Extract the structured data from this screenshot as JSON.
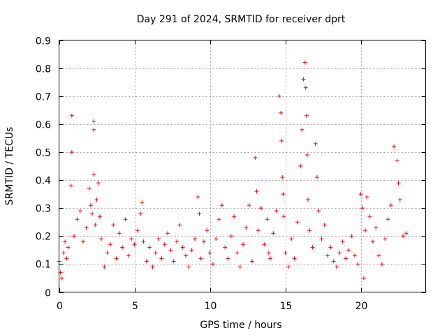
{
  "chart_data": {
    "type": "scatter",
    "title": "Day 291 of 2024, SRMTID for receiver dprt",
    "xlabel": "GPS time / hours",
    "ylabel": "SRMTID / TECUs",
    "xlim": [
      0,
      24.3
    ],
    "ylim": [
      0,
      0.9
    ],
    "x_ticks": [
      0,
      5,
      10,
      15,
      20
    ],
    "x_tick_labels": [
      "0",
      "5",
      "10",
      "15",
      "20"
    ],
    "y_ticks": [
      0,
      0.1,
      0.2,
      0.3,
      0.4,
      0.5,
      0.6,
      0.7,
      0.8,
      0.9
    ],
    "y_tick_labels": [
      "0",
      "0.1",
      "0.2",
      "0.3",
      "0.4",
      "0.5",
      "0.6",
      "0.7",
      "0.8",
      "0.9"
    ],
    "grid": true,
    "marker": "+",
    "color": "#ff0000",
    "series": [
      {
        "name": "dprt",
        "x": [
          0.0,
          0.1,
          0.2,
          0.3,
          0.4,
          0.5,
          0.6,
          0.8,
          0.85,
          0.85,
          1.0,
          1.2,
          1.4,
          1.6,
          1.8,
          2.0,
          2.1,
          2.2,
          2.3,
          2.3,
          2.3,
          2.4,
          2.5,
          2.6,
          2.7,
          2.8,
          3.0,
          3.2,
          3.4,
          3.6,
          3.8,
          4.0,
          4.2,
          4.4,
          4.6,
          4.8,
          5.0,
          5.2,
          5.4,
          5.5,
          5.6,
          5.8,
          6.0,
          6.2,
          6.4,
          6.6,
          6.8,
          7.0,
          7.2,
          7.4,
          7.6,
          7.8,
          8.0,
          8.2,
          8.4,
          8.6,
          8.8,
          9.0,
          9.2,
          9.3,
          9.4,
          9.6,
          9.8,
          10.0,
          10.2,
          10.4,
          10.6,
          10.8,
          11.0,
          11.2,
          11.4,
          11.6,
          11.8,
          12.0,
          12.2,
          12.4,
          12.6,
          12.8,
          13.0,
          13.1,
          13.2,
          13.4,
          13.6,
          13.8,
          13.9,
          14.0,
          14.2,
          14.4,
          14.6,
          14.7,
          14.75,
          14.8,
          14.85,
          14.9,
          15.0,
          15.2,
          15.4,
          15.6,
          15.8,
          16.0,
          16.1,
          16.2,
          16.3,
          16.35,
          16.4,
          16.45,
          16.5,
          16.6,
          16.8,
          17.0,
          17.1,
          17.2,
          17.4,
          17.6,
          17.8,
          18.0,
          18.2,
          18.4,
          18.6,
          18.8,
          19.0,
          19.2,
          19.4,
          19.6,
          19.8,
          20.0,
          20.1,
          20.2,
          20.3,
          20.4,
          20.6,
          20.8,
          21.0,
          21.2,
          21.4,
          21.6,
          21.8,
          22.0,
          22.2,
          22.4,
          22.5,
          22.6,
          22.8,
          23.0
        ],
        "y": [
          0.11,
          0.07,
          0.05,
          0.14,
          0.18,
          0.12,
          0.16,
          0.38,
          0.63,
          0.5,
          0.2,
          0.26,
          0.29,
          0.18,
          0.23,
          0.37,
          0.31,
          0.28,
          0.61,
          0.58,
          0.42,
          0.24,
          0.33,
          0.39,
          0.27,
          0.19,
          0.09,
          0.14,
          0.17,
          0.24,
          0.12,
          0.21,
          0.16,
          0.26,
          0.13,
          0.19,
          0.17,
          0.22,
          0.28,
          0.32,
          0.18,
          0.11,
          0.16,
          0.09,
          0.14,
          0.19,
          0.12,
          0.17,
          0.21,
          0.15,
          0.11,
          0.18,
          0.24,
          0.16,
          0.13,
          0.09,
          0.15,
          0.19,
          0.34,
          0.28,
          0.12,
          0.18,
          0.22,
          0.14,
          0.1,
          0.19,
          0.26,
          0.31,
          0.16,
          0.12,
          0.2,
          0.27,
          0.14,
          0.09,
          0.17,
          0.23,
          0.31,
          0.11,
          0.48,
          0.36,
          0.22,
          0.3,
          0.17,
          0.26,
          0.14,
          0.12,
          0.21,
          0.29,
          0.7,
          0.64,
          0.54,
          0.41,
          0.35,
          0.27,
          0.14,
          0.09,
          0.19,
          0.12,
          0.25,
          0.45,
          0.58,
          0.76,
          0.82,
          0.73,
          0.63,
          0.49,
          0.33,
          0.22,
          0.16,
          0.53,
          0.41,
          0.29,
          0.19,
          0.24,
          0.13,
          0.16,
          0.11,
          0.09,
          0.14,
          0.18,
          0.12,
          0.15,
          0.2,
          0.13,
          0.1,
          0.35,
          0.3,
          0.05,
          0.22,
          0.34,
          0.27,
          0.18,
          0.23,
          0.13,
          0.1,
          0.19,
          0.26,
          0.31,
          0.52,
          0.47,
          0.39,
          0.33,
          0.2,
          0.21
        ]
      }
    ]
  }
}
